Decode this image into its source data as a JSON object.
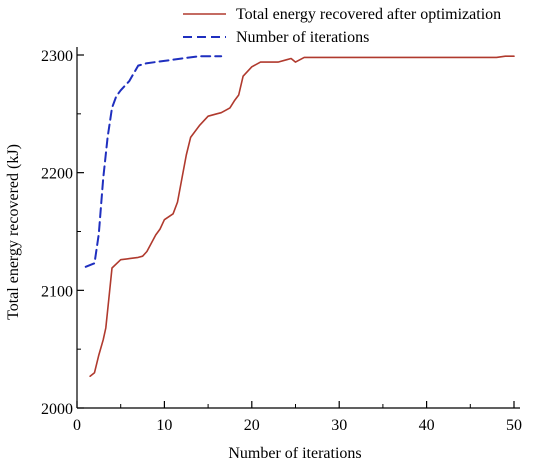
{
  "chart_data": {
    "type": "line",
    "xlabel": "Number of iterations",
    "ylabel": "Total energy recovered (kJ)",
    "xlim": [
      0,
      50
    ],
    "ylim": [
      2000,
      2300
    ],
    "xticks": [
      0,
      10,
      20,
      30,
      40,
      50
    ],
    "yticks": [
      2000,
      2100,
      2200,
      2300
    ],
    "grid": false,
    "legend_position": "top-right",
    "series": [
      {
        "name": "Total energy recovered after optimization",
        "color": "#b03a2e",
        "style": "solid",
        "x": [
          1.5,
          2,
          2.5,
          3,
          3.3,
          3.6,
          4,
          5,
          6,
          7,
          7.5,
          8,
          8.5,
          9,
          9.5,
          10,
          11,
          11.5,
          12,
          12.5,
          13,
          14,
          15,
          16,
          16.5,
          17,
          17.5,
          18,
          18.5,
          19,
          20,
          21,
          22,
          23,
          24,
          24.5,
          25,
          26,
          30,
          35,
          40,
          45,
          48,
          49,
          50
        ],
        "y": [
          2027,
          2030,
          2045,
          2058,
          2068,
          2090,
          2119,
          2126,
          2127,
          2128,
          2129,
          2133,
          2140,
          2147,
          2152,
          2160,
          2165,
          2175,
          2195,
          2215,
          2230,
          2240,
          2248,
          2250,
          2251,
          2253,
          2255,
          2261,
          2266,
          2282,
          2290,
          2294,
          2294,
          2294,
          2296,
          2297,
          2294,
          2298,
          2298,
          2298,
          2298,
          2298,
          2298,
          2299,
          2299
        ]
      },
      {
        "name": "Number of iterations",
        "color": "#1f2fbf",
        "style": "dashed",
        "x": [
          1,
          2,
          2.5,
          3,
          3.5,
          4,
          4.5,
          5,
          6,
          7,
          8,
          10,
          12,
          14,
          16.5
        ],
        "y": [
          2120,
          2123,
          2148,
          2195,
          2230,
          2255,
          2265,
          2270,
          2278,
          2291,
          2293,
          2295,
          2297,
          2299,
          2299
        ]
      }
    ]
  }
}
